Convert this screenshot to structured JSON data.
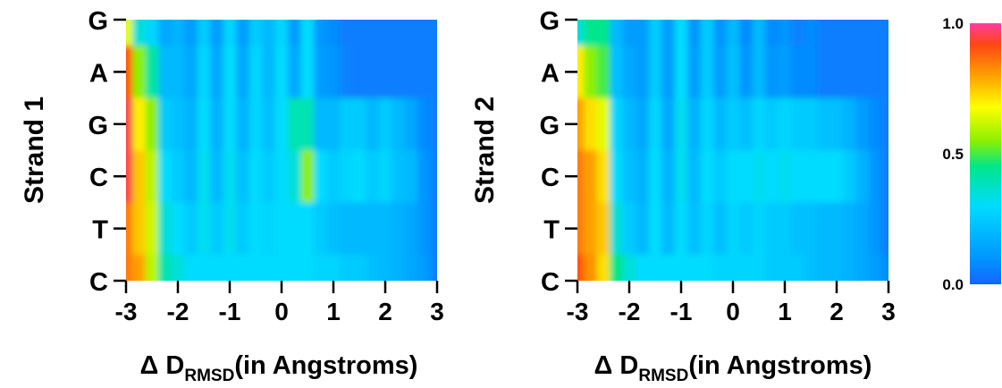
{
  "chart_data": [
    {
      "type": "heatmap",
      "id": "strand1",
      "title": "",
      "ylabel": "Strand 1",
      "xlabel": {
        "prefix": "Δ D",
        "sub": "RMSD",
        "suffix": "(in Angstroms)"
      },
      "xlim": [
        -3,
        3
      ],
      "x_ticks": [
        "-3",
        "-2",
        "-1",
        "0",
        "1",
        "2",
        "3"
      ],
      "y_categories_top_to_bottom": [
        "G",
        "A",
        "G",
        "C",
        "T",
        "C"
      ],
      "grid": false,
      "x": [
        -3.0,
        -2.75,
        -2.5,
        -2.25,
        -2.0,
        -1.75,
        -1.5,
        -1.25,
        -1.0,
        -0.75,
        -0.5,
        -0.25,
        0.0,
        0.25,
        0.5,
        0.75,
        1.0,
        1.25,
        1.5,
        1.75,
        2.0,
        2.25,
        2.5,
        2.75,
        3.0
      ],
      "values": [
        [
          0.65,
          0.35,
          0.28,
          0.15,
          0.18,
          0.12,
          0.25,
          0.12,
          0.28,
          0.12,
          0.25,
          0.2,
          0.28,
          0.12,
          0.3,
          0.1,
          0.08,
          0.05,
          0.05,
          0.05,
          0.05,
          0.05,
          0.05,
          0.05,
          0.05
        ],
        [
          0.9,
          0.55,
          0.42,
          0.2,
          0.2,
          0.15,
          0.28,
          0.15,
          0.3,
          0.15,
          0.28,
          0.2,
          0.3,
          0.15,
          0.3,
          0.12,
          0.1,
          0.06,
          0.05,
          0.05,
          0.05,
          0.05,
          0.05,
          0.05,
          0.05
        ],
        [
          0.95,
          0.7,
          0.55,
          0.25,
          0.22,
          0.18,
          0.3,
          0.18,
          0.3,
          0.18,
          0.28,
          0.22,
          0.3,
          0.4,
          0.4,
          0.2,
          0.2,
          0.25,
          0.25,
          0.2,
          0.25,
          0.2,
          0.15,
          0.08,
          0.05
        ],
        [
          0.95,
          0.75,
          0.6,
          0.3,
          0.25,
          0.2,
          0.32,
          0.2,
          0.32,
          0.22,
          0.3,
          0.25,
          0.3,
          0.35,
          0.55,
          0.3,
          0.25,
          0.28,
          0.3,
          0.25,
          0.28,
          0.22,
          0.2,
          0.1,
          0.05
        ],
        [
          0.85,
          0.75,
          0.62,
          0.35,
          0.3,
          0.25,
          0.32,
          0.25,
          0.32,
          0.25,
          0.3,
          0.28,
          0.3,
          0.3,
          0.3,
          0.25,
          0.22,
          0.2,
          0.2,
          0.2,
          0.2,
          0.18,
          0.15,
          0.1,
          0.05
        ],
        [
          0.85,
          0.8,
          0.6,
          0.4,
          0.35,
          0.3,
          0.3,
          0.3,
          0.3,
          0.3,
          0.3,
          0.3,
          0.3,
          0.3,
          0.3,
          0.28,
          0.28,
          0.25,
          0.25,
          0.22,
          0.2,
          0.18,
          0.15,
          0.12,
          0.05
        ]
      ]
    },
    {
      "type": "heatmap",
      "id": "strand2",
      "title": "",
      "ylabel": "Strand 2",
      "xlabel": {
        "prefix": "Δ D",
        "sub": "RMSD",
        "suffix": "(in Angstroms)"
      },
      "xlim": [
        -3,
        3
      ],
      "x_ticks": [
        "-3",
        "-2",
        "-1",
        "0",
        "1",
        "2",
        "3"
      ],
      "y_categories_top_to_bottom": [
        "G",
        "A",
        "G",
        "C",
        "T",
        "C"
      ],
      "grid": false,
      "x": [
        -3.0,
        -2.75,
        -2.5,
        -2.25,
        -2.0,
        -1.75,
        -1.5,
        -1.25,
        -1.0,
        -0.75,
        -0.5,
        -0.25,
        0.0,
        0.25,
        0.5,
        0.75,
        1.0,
        1.25,
        1.5,
        1.75,
        2.0,
        2.25,
        2.5,
        2.75,
        3.0
      ],
      "values": [
        [
          0.35,
          0.45,
          0.45,
          0.2,
          0.12,
          0.12,
          0.25,
          0.12,
          0.3,
          0.1,
          0.25,
          0.1,
          0.2,
          0.08,
          0.2,
          0.08,
          0.1,
          0.06,
          0.08,
          0.05,
          0.05,
          0.05,
          0.05,
          0.05,
          0.05
        ],
        [
          0.7,
          0.55,
          0.5,
          0.22,
          0.15,
          0.12,
          0.25,
          0.12,
          0.3,
          0.12,
          0.25,
          0.12,
          0.22,
          0.1,
          0.2,
          0.1,
          0.12,
          0.08,
          0.08,
          0.05,
          0.05,
          0.05,
          0.05,
          0.05,
          0.05
        ],
        [
          0.8,
          0.72,
          0.65,
          0.28,
          0.2,
          0.15,
          0.28,
          0.15,
          0.32,
          0.18,
          0.28,
          0.2,
          0.25,
          0.22,
          0.28,
          0.25,
          0.28,
          0.25,
          0.25,
          0.22,
          0.22,
          0.18,
          0.12,
          0.08,
          0.05
        ],
        [
          0.85,
          0.8,
          0.72,
          0.3,
          0.22,
          0.18,
          0.3,
          0.18,
          0.32,
          0.2,
          0.3,
          0.25,
          0.3,
          0.3,
          0.32,
          0.3,
          0.32,
          0.3,
          0.3,
          0.3,
          0.3,
          0.25,
          0.18,
          0.1,
          0.05
        ],
        [
          0.85,
          0.8,
          0.75,
          0.35,
          0.25,
          0.2,
          0.3,
          0.2,
          0.3,
          0.22,
          0.28,
          0.22,
          0.28,
          0.25,
          0.28,
          0.25,
          0.25,
          0.22,
          0.22,
          0.2,
          0.2,
          0.18,
          0.15,
          0.1,
          0.05
        ],
        [
          0.9,
          0.82,
          0.72,
          0.45,
          0.35,
          0.3,
          0.3,
          0.3,
          0.3,
          0.3,
          0.3,
          0.28,
          0.28,
          0.28,
          0.28,
          0.25,
          0.25,
          0.25,
          0.22,
          0.2,
          0.2,
          0.18,
          0.15,
          0.12,
          0.08
        ]
      ]
    }
  ],
  "colorbar": {
    "tick_labels": [
      "1.0",
      "0.5",
      "0.0"
    ],
    "tick_values": [
      1.0,
      0.5,
      0.0
    ],
    "colormap": [
      "#1565ff",
      "#0096ff",
      "#00dcff",
      "#00e68c",
      "#8cf000",
      "#ffff00",
      "#ffa000",
      "#ff4614",
      "#ff3ca0"
    ]
  },
  "colors": {
    "background": "#ffffff",
    "axis": "#000000"
  }
}
